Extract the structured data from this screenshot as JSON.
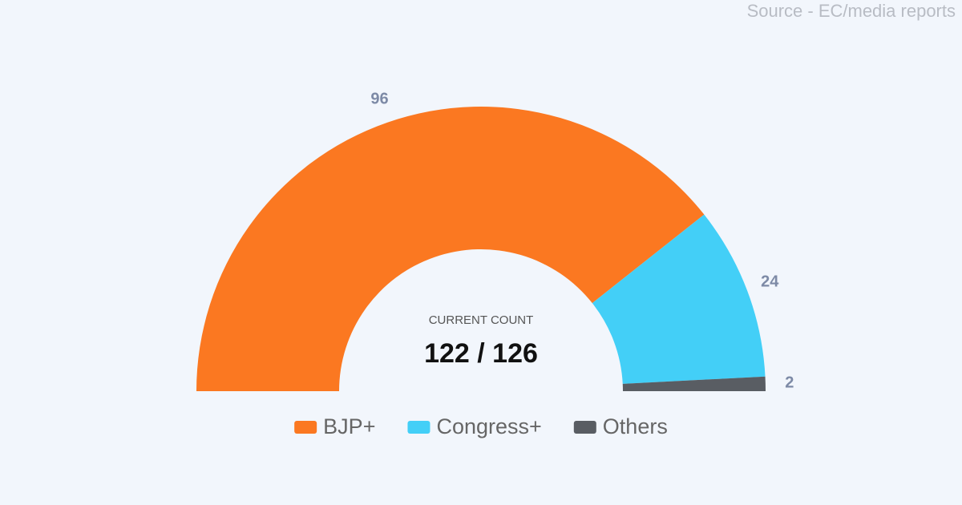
{
  "chart_data": {
    "type": "semi-donut",
    "source": "Source - EC/media reports",
    "center_label": "CURRENT COUNT",
    "center_value": "122 / 126",
    "categories": [
      "BJP+",
      "Congress+",
      "Others"
    ],
    "values": [
      96,
      24,
      2
    ],
    "colors": [
      "#fb7821",
      "#43cff7",
      "#595d63"
    ]
  }
}
